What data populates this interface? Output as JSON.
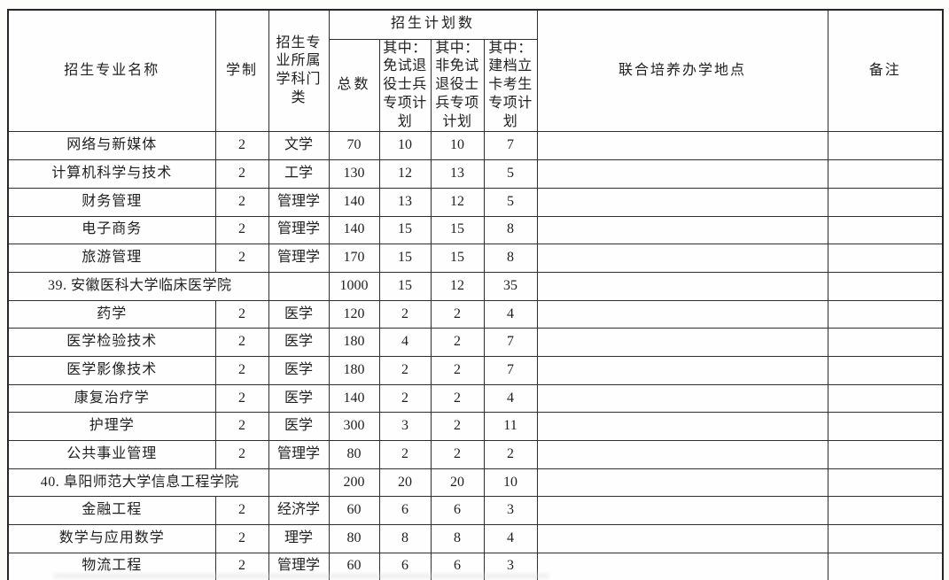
{
  "colors": {
    "border": "#2e2e2e",
    "text": "#1f1f1f",
    "paper": "#fdfdfc"
  },
  "table": {
    "header": {
      "major_name": "招生专业名称",
      "duration": "学制",
      "discipline": "招生专业所属学科门类",
      "plan_group": "招生计划数",
      "total": "总数",
      "exempt_veteran": "其中：免试退役士兵专项计划",
      "non_exempt_veteran": "其中：非免试退役士兵专项计划",
      "poverty_card": "其中：建档立卡考生专项计划",
      "joint_location": "联合培养办学地点",
      "remark": "备注"
    },
    "rows": [
      {
        "type": "major",
        "name": "网络与新媒体",
        "duration": "2",
        "discipline": "文学",
        "total": "70",
        "exempt": "10",
        "non_exempt": "10",
        "card": "7",
        "location": "",
        "remark": ""
      },
      {
        "type": "major",
        "name": "计算机科学与技术",
        "duration": "2",
        "discipline": "工学",
        "total": "130",
        "exempt": "12",
        "non_exempt": "13",
        "card": "5",
        "location": "",
        "remark": ""
      },
      {
        "type": "major",
        "name": "财务管理",
        "duration": "2",
        "discipline": "管理学",
        "total": "140",
        "exempt": "13",
        "non_exempt": "12",
        "card": "5",
        "location": "",
        "remark": ""
      },
      {
        "type": "major",
        "name": "电子商务",
        "duration": "2",
        "discipline": "管理学",
        "total": "140",
        "exempt": "15",
        "non_exempt": "15",
        "card": "8",
        "location": "",
        "remark": ""
      },
      {
        "type": "major",
        "name": "旅游管理",
        "duration": "2",
        "discipline": "管理学",
        "total": "170",
        "exempt": "15",
        "non_exempt": "15",
        "card": "8",
        "location": "",
        "remark": ""
      },
      {
        "type": "school",
        "name": "39. 安徽医科大学临床医学院",
        "discipline": "",
        "total": "1000",
        "exempt": "15",
        "non_exempt": "12",
        "card": "35",
        "location": "",
        "remark": ""
      },
      {
        "type": "major",
        "name": "药学",
        "duration": "2",
        "discipline": "医学",
        "total": "120",
        "exempt": "2",
        "non_exempt": "2",
        "card": "4",
        "location": "",
        "remark": ""
      },
      {
        "type": "major",
        "name": "医学检验技术",
        "duration": "2",
        "discipline": "医学",
        "total": "180",
        "exempt": "4",
        "non_exempt": "2",
        "card": "7",
        "location": "",
        "remark": ""
      },
      {
        "type": "major",
        "name": "医学影像技术",
        "duration": "2",
        "discipline": "医学",
        "total": "180",
        "exempt": "2",
        "non_exempt": "2",
        "card": "7",
        "location": "",
        "remark": ""
      },
      {
        "type": "major",
        "name": "康复治疗学",
        "duration": "2",
        "discipline": "医学",
        "total": "140",
        "exempt": "2",
        "non_exempt": "2",
        "card": "4",
        "location": "",
        "remark": ""
      },
      {
        "type": "major",
        "name": "护理学",
        "duration": "2",
        "discipline": "医学",
        "total": "300",
        "exempt": "3",
        "non_exempt": "2",
        "card": "11",
        "location": "",
        "remark": ""
      },
      {
        "type": "major",
        "name": "公共事业管理",
        "duration": "2",
        "discipline": "管理学",
        "total": "80",
        "exempt": "2",
        "non_exempt": "2",
        "card": "2",
        "location": "",
        "remark": ""
      },
      {
        "type": "school",
        "name": "40. 阜阳师范大学信息工程学院",
        "discipline": "",
        "total": "200",
        "exempt": "20",
        "non_exempt": "20",
        "card": "10",
        "location": "",
        "remark": ""
      },
      {
        "type": "major",
        "name": "金融工程",
        "duration": "2",
        "discipline": "经济学",
        "total": "60",
        "exempt": "6",
        "non_exempt": "6",
        "card": "3",
        "location": "",
        "remark": ""
      },
      {
        "type": "major",
        "name": "数学与应用数学",
        "duration": "2",
        "discipline": "理学",
        "total": "80",
        "exempt": "8",
        "non_exempt": "8",
        "card": "4",
        "location": "",
        "remark": ""
      },
      {
        "type": "major",
        "name": "物流工程",
        "duration": "2",
        "discipline": "管理学",
        "total": "60",
        "exempt": "6",
        "non_exempt": "6",
        "card": "3",
        "location": "",
        "remark": ""
      }
    ]
  }
}
